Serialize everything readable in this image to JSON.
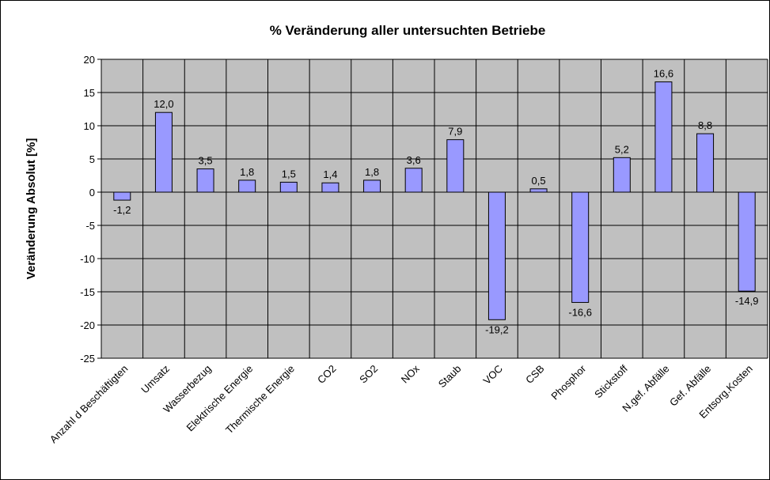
{
  "chart_data": {
    "type": "bar",
    "title": "% Veränderung aller untersuchten Betriebe",
    "y_label": "Veränderung Absolut [%]",
    "categories": [
      "Anzahl d Beschäftigten",
      "Umsatz",
      "Wasserbezug",
      "Elektrische Energie",
      "Thermische Energie",
      "CO2",
      "SO2",
      "NOx",
      "Staub",
      "VOC",
      "CSB",
      "Phosphor",
      "Stickstoff",
      "N.gef. Abfälle",
      "Gef. Abfälle",
      "Entsorg.Kosten"
    ],
    "values": [
      -1.2,
      12.0,
      3.5,
      1.8,
      1.5,
      1.4,
      1.8,
      3.6,
      7.9,
      -19.2,
      0.5,
      -16.6,
      5.2,
      16.6,
      8.8,
      -14.9
    ],
    "value_labels": [
      "-1,2",
      "12,0",
      "3,5",
      "1,8",
      "1,5",
      "1,4",
      "1,8",
      "3,6",
      "7,9",
      "-19,2",
      "0,5",
      "-16,6",
      "5,2",
      "16,6",
      "8,8",
      "-14,9"
    ],
    "color": "#9999ff",
    "ylim": [
      -25,
      20
    ],
    "yticks": [
      -25,
      -20,
      -15,
      -10,
      -5,
      0,
      5,
      10,
      15,
      20
    ],
    "grid": true
  }
}
